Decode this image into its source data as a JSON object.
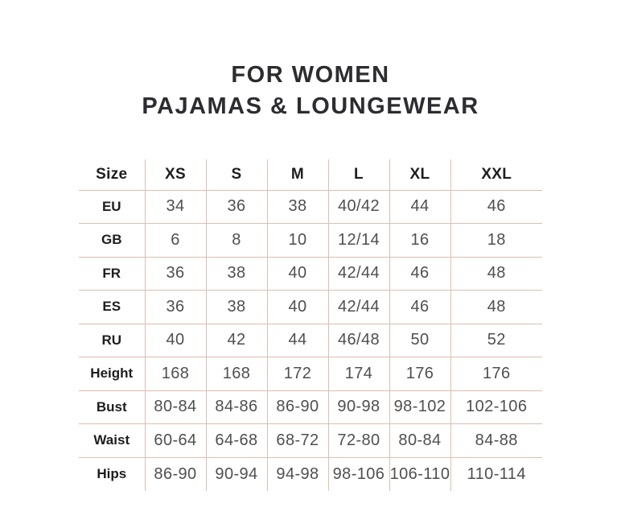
{
  "title": {
    "line1": "FOR WOMEN",
    "line2": "PAJAMAS & LOUNGEWEAR"
  },
  "table": {
    "columns": [
      "Size",
      "XS",
      "S",
      "M",
      "L",
      "XL",
      "XXL"
    ],
    "rows": [
      {
        "label": "EU",
        "values": [
          "34",
          "36",
          "38",
          "40/42",
          "44",
          "46"
        ]
      },
      {
        "label": "GB",
        "values": [
          "6",
          "8",
          "10",
          "12/14",
          "16",
          "18"
        ]
      },
      {
        "label": "FR",
        "values": [
          "36",
          "38",
          "40",
          "42/44",
          "46",
          "48"
        ]
      },
      {
        "label": "ES",
        "values": [
          "36",
          "38",
          "40",
          "42/44",
          "46",
          "48"
        ]
      },
      {
        "label": "RU",
        "values": [
          "40",
          "42",
          "44",
          "46/48",
          "50",
          "52"
        ]
      },
      {
        "label": "Height",
        "values": [
          "168",
          "168",
          "172",
          "174",
          "176",
          "176"
        ]
      },
      {
        "label": "Bust",
        "values": [
          "80-84",
          "84-86",
          "86-90",
          "90-98",
          "98-102",
          "102-106"
        ]
      },
      {
        "label": "Waist",
        "values": [
          "60-64",
          "64-68",
          "68-72",
          "72-80",
          "80-84",
          "84-88"
        ]
      },
      {
        "label": "Hips",
        "values": [
          "86-90",
          "90-94",
          "94-98",
          "98-106",
          "106-110",
          "110-114"
        ]
      }
    ]
  },
  "colors": {
    "grid_line": "#d9c0b1",
    "heading_text": "#2c2c31",
    "label_text": "#1e1e1e",
    "data_text": "#4f4f4f",
    "background": "#ffffff"
  }
}
